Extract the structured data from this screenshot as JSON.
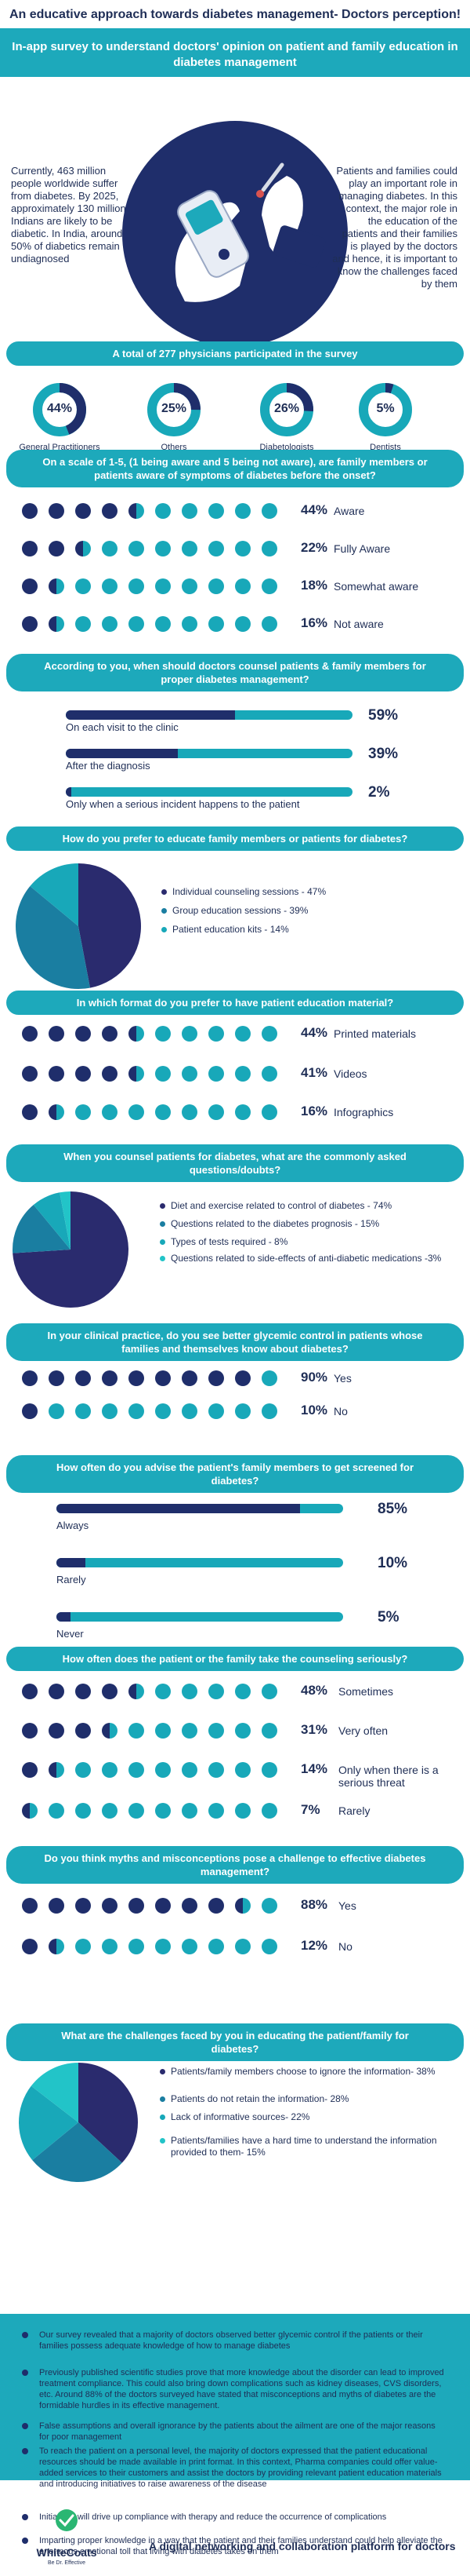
{
  "header": {
    "title": "An educative approach towards diabetes management- Doctors perception!"
  },
  "intro": {
    "title": "In-app survey to understand doctors' opinion on patient and family education in diabetes management",
    "left_text": "Currently, 463 million people worldwide suffer from diabetes. By 2025, approximately 130 million Indians are likely to be diabetic. In India, around 50% of diabetics remain undiagnosed",
    "right_text": "Patients and families could play an important role in managing diabetes. In this context, the major role in the education of the patients and their families is played by the doctors and hence, it is important to know the challenges faced by them"
  },
  "participants": {
    "title": "A total of 277 physicians participated in the survey",
    "groups": [
      {
        "label": "General Practitioners",
        "pct": "44%",
        "value": 44
      },
      {
        "label": "Others",
        "pct": "25%",
        "value": 25
      },
      {
        "label": "Diabetologists",
        "pct": "26%",
        "value": 26
      },
      {
        "label": "Dentists",
        "pct": "5%",
        "value": 5
      }
    ]
  },
  "q1": {
    "title": "On a scale of 1-5, (1 being aware and 5 being not aware), are family members or patients aware of symptoms of diabetes before the onset?",
    "rows": [
      {
        "pct": "44%",
        "label": "Aware",
        "value": 44
      },
      {
        "pct": "22%",
        "label": "Fully Aware",
        "value": 22
      },
      {
        "pct": "18%",
        "label": "Somewhat aware",
        "value": 18
      },
      {
        "pct": "16%",
        "label": "Not aware",
        "value": 16
      }
    ]
  },
  "q2": {
    "title": "According to you, when should doctors counsel patients & family members for proper diabetes management?",
    "rows": [
      {
        "label": "On each visit to the clinic",
        "pct": "59%",
        "value": 59
      },
      {
        "label": "After the diagnosis",
        "pct": "39%",
        "value": 39
      },
      {
        "label": "Only when a serious incident happens to the patient",
        "pct": "2%",
        "value": 2
      }
    ]
  },
  "q3": {
    "title": "How do you prefer to educate family members or patients for diabetes?",
    "items": [
      {
        "label": "Individual counseling sessions - 47%",
        "value": 47,
        "color": "#2a2b6e"
      },
      {
        "label": "Group education sessions - 39%",
        "value": 39,
        "color": "#1a7ea1"
      },
      {
        "label": "Patient education kits - 14%",
        "value": 14,
        "color": "#18a8b9"
      }
    ]
  },
  "q4": {
    "title": "In which format do you prefer to have patient education material?",
    "rows": [
      {
        "pct": "44%",
        "label": "Printed materials",
        "value": 44
      },
      {
        "pct": "41%",
        "label": "Videos",
        "value": 41
      },
      {
        "pct": "16%",
        "label": "Infographics",
        "value": 16
      }
    ]
  },
  "q5": {
    "title": "When you counsel patients for diabetes, what are the commonly asked questions/doubts?",
    "items": [
      {
        "label": "Diet and exercise related to control of diabetes - 74%",
        "value": 74,
        "color": "#2a2b6e"
      },
      {
        "label": "Questions related to the diabetes prognosis - 15%",
        "value": 15,
        "color": "#1a7ea1"
      },
      {
        "label": "Types of tests required - 8%",
        "value": 8,
        "color": "#18a8b9"
      },
      {
        "label": "Questions related to side-effects of anti-diabetic medications -3%",
        "value": 3,
        "color": "#22c4c8"
      }
    ]
  },
  "q6": {
    "title": "In your clinical practice, do you see better glycemic control in patients whose families and themselves know about diabetes?",
    "rows": [
      {
        "pct": "90%",
        "label": "Yes",
        "value": 90
      },
      {
        "pct": "10%",
        "label": "No",
        "value": 10
      }
    ]
  },
  "q7": {
    "title": "How often do you advise the patient's family members to get screened for diabetes?",
    "rows": [
      {
        "label": "Always",
        "pct": "85%",
        "value": 85
      },
      {
        "label": "Rarely",
        "pct": "10%",
        "value": 10
      },
      {
        "label": "Never",
        "pct": "5%",
        "value": 5
      }
    ]
  },
  "q8": {
    "title": "How often does the patient or the family take the counseling seriously?",
    "rows": [
      {
        "pct": "48%",
        "label": "Sometimes",
        "value": 48
      },
      {
        "pct": "31%",
        "label": "Very often",
        "value": 31
      },
      {
        "pct": "14%",
        "label": "Only when there is a serious threat",
        "value": 14
      },
      {
        "pct": "7%",
        "label": "Rarely",
        "value": 7
      }
    ]
  },
  "q9": {
    "title": "Do you think myths and misconceptions pose a challenge to effective diabetes management?",
    "rows": [
      {
        "pct": "88%",
        "label": "Yes",
        "value": 88
      },
      {
        "pct": "12%",
        "label": "No",
        "value": 12
      }
    ]
  },
  "q10": {
    "title": "What are the challenges faced by you in educating the patient/family for diabetes?",
    "items": [
      {
        "label": "Patients/family members choose to ignore the information- 38%",
        "value": 38,
        "color": "#2a2b6e"
      },
      {
        "label": "Patients do not retain the information- 28%",
        "value": 28,
        "color": "#1a7ea1"
      },
      {
        "label": "Lack of informative sources- 22%",
        "value": 22,
        "color": "#18a8b9"
      },
      {
        "label": "Patients/families have a hard time to understand the information provided to them- 15%",
        "value": 15,
        "color": "#22c4c8"
      }
    ]
  },
  "summary": [
    "Our survey revealed that a majority of doctors observed better glycemic control if the patients or their families possess adequate knowledge of how to manage diabetes",
    "Previously published scientific studies prove that more knowledge about the disorder can lead to improved treatment compliance. This could also bring down complications such as kidney diseases, CVS disorders, etc. Around 88% of the doctors surveyed have stated that misconceptions and myths of diabetes are the formidable hurdles in its effective management.",
    "False assumptions and overall ignorance by the patients about the ailment are one of the major reasons for poor management",
    "To reach the patient on a personal level, the majority of doctors expressed that the patient educational resources should be made available in print format. In this context, Pharma companies could offer value-added services to their customers and assist the doctors by providing relevant patient education materials and introducing initiatives to raise awareness of the disease",
    "Initiatives will drive up compliance with therapy and reduce the occurrence of complications",
    "Imparting proper knowledge in a way that the patient and their families understand could help alleviate the enormous emotional toll that living with diabetes takes on them"
  ],
  "footer": {
    "logo_name": "WhiteCoats",
    "logo_tag": "Be Dr. Effective",
    "tagline": "A digital networking and collaboration platform for doctors"
  },
  "colors": {
    "navy": "#1f2e6b",
    "teal": "#18a8b9",
    "band": "#1da9bb"
  }
}
